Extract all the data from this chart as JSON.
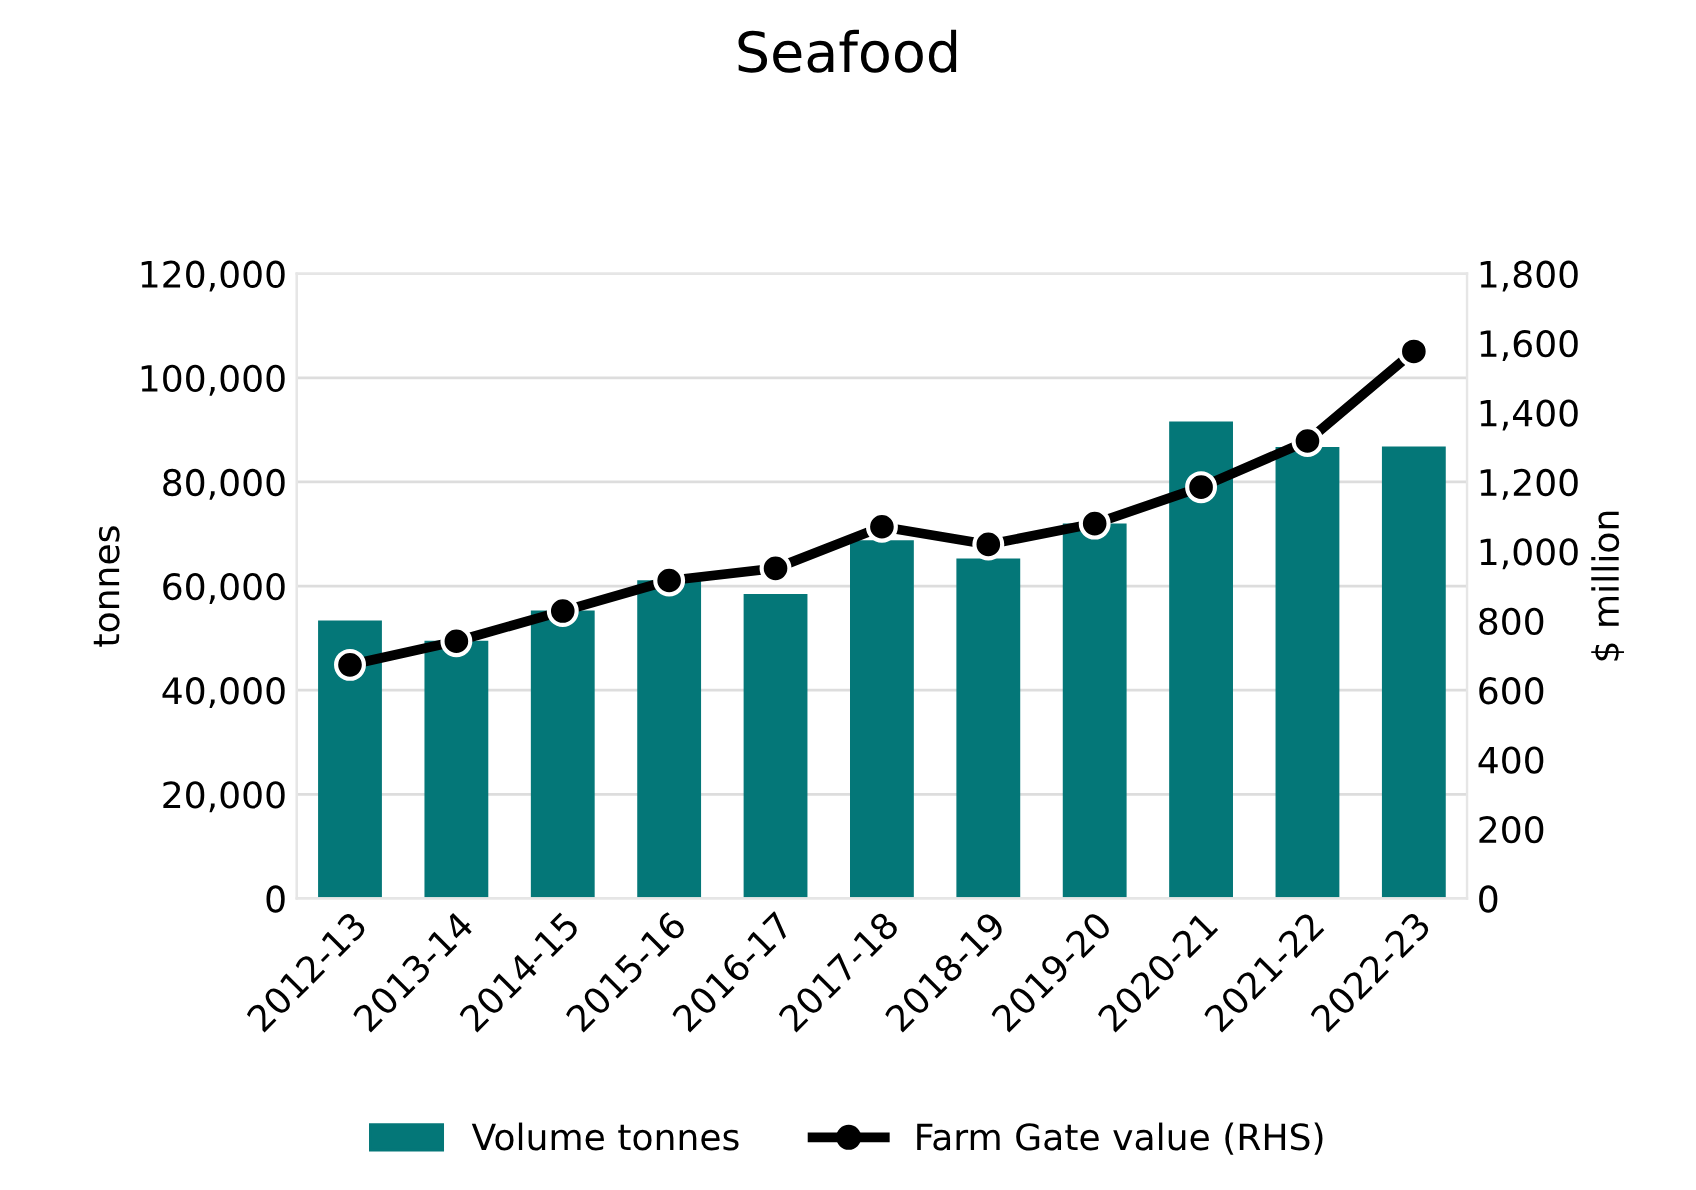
{
  "chart_data": {
    "type": "bar",
    "title": "Seafood",
    "ylabel": "tonnes",
    "y2label": "$ million",
    "categories": [
      "2012-13",
      "2013-14",
      "2014-15",
      "2015-16",
      "2016-17",
      "2017-18",
      "2018-19",
      "2019-20",
      "2020-21",
      "2021-22",
      "2022-23"
    ],
    "series": [
      {
        "name": "Volume tonnes",
        "color": "#047778",
        "values": [
          53400,
          49500,
          55300,
          61100,
          58500,
          68800,
          65300,
          72000,
          91600,
          86700,
          86800
        ]
      },
      {
        "name": "Farm Gate value (RHS)",
        "type": "line",
        "axis": "y2",
        "color": "#000000",
        "marker": "circle",
        "values": [
          673,
          741,
          828,
          916,
          951,
          1071,
          1020,
          1080,
          1185,
          1318,
          1576
        ]
      }
    ],
    "ylim": [
      0,
      120000
    ],
    "yticks": [
      {
        "value": 0,
        "label": "0"
      },
      {
        "value": 20000,
        "label": "20,000"
      },
      {
        "value": 40000,
        "label": "40,000"
      },
      {
        "value": 60000,
        "label": "60,000"
      },
      {
        "value": 80000,
        "label": "80,000"
      },
      {
        "value": 100000,
        "label": "100,000"
      },
      {
        "value": 120000,
        "label": "120,000"
      }
    ],
    "y2lim": [
      0,
      1800
    ],
    "y2ticks": [
      0,
      200,
      400,
      600,
      800,
      {
        "value": 1000,
        "label": "1,000"
      },
      {
        "value": 1200,
        "label": "1,200"
      },
      {
        "value": 1400,
        "label": "1,400"
      },
      {
        "value": 1600,
        "label": "1,600"
      },
      {
        "value": 1800,
        "label": "1,800"
      }
    ],
    "grid": "y",
    "legend": "bottom"
  }
}
